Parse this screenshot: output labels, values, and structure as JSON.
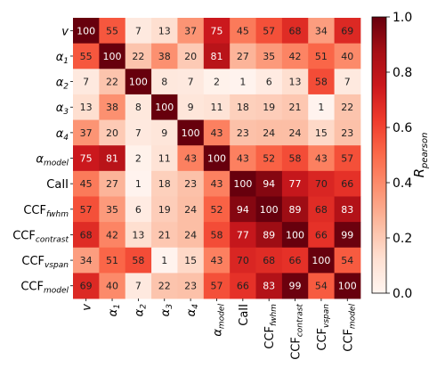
{
  "chart_data": {
    "type": "heatmap",
    "labels": [
      {
        "main": "v",
        "sub": ""
      },
      {
        "main": "α",
        "sub": "1"
      },
      {
        "main": "α",
        "sub": "2"
      },
      {
        "main": "α",
        "sub": "3"
      },
      {
        "main": "α",
        "sub": "4"
      },
      {
        "main": "α",
        "sub": "model"
      },
      {
        "main": "CaII",
        "sub": ""
      },
      {
        "main": "CCF",
        "sub": "fwhm"
      },
      {
        "main": "CCF",
        "sub": "contrast"
      },
      {
        "main": "CCF",
        "sub": "vspan"
      },
      {
        "main": "CCF",
        "sub": "model"
      }
    ],
    "values": [
      [
        100,
        55,
        7,
        13,
        37,
        75,
        45,
        57,
        68,
        34,
        69
      ],
      [
        55,
        100,
        22,
        38,
        20,
        81,
        27,
        35,
        42,
        51,
        40
      ],
      [
        7,
        22,
        100,
        8,
        7,
        2,
        1,
        6,
        13,
        58,
        7
      ],
      [
        13,
        38,
        8,
        100,
        9,
        11,
        18,
        19,
        21,
        1,
        22
      ],
      [
        37,
        20,
        7,
        9,
        100,
        43,
        23,
        24,
        24,
        15,
        23
      ],
      [
        75,
        81,
        2,
        11,
        43,
        100,
        43,
        52,
        58,
        43,
        57
      ],
      [
        45,
        27,
        1,
        18,
        23,
        43,
        100,
        94,
        77,
        70,
        66
      ],
      [
        57,
        35,
        6,
        19,
        24,
        52,
        94,
        100,
        89,
        68,
        83
      ],
      [
        68,
        42,
        13,
        21,
        24,
        58,
        77,
        89,
        100,
        66,
        99
      ],
      [
        34,
        51,
        58,
        1,
        15,
        43,
        70,
        68,
        66,
        100,
        54
      ],
      [
        69,
        40,
        7,
        22,
        23,
        57,
        66,
        83,
        99,
        54,
        100
      ]
    ],
    "colorbar": {
      "label_main": "R",
      "label_sub": "pearson",
      "range": [
        0,
        1
      ],
      "ticks": [
        "0.0",
        "0.2",
        "0.4",
        "0.6",
        "0.8",
        "1.0"
      ],
      "colormap": "Reds",
      "colors": [
        "#fff5f0",
        "#fee0d2",
        "#fcbba1",
        "#fc9272",
        "#fb6a4a",
        "#ef3b2c",
        "#cb181d",
        "#a50f15",
        "#67000d"
      ]
    }
  }
}
